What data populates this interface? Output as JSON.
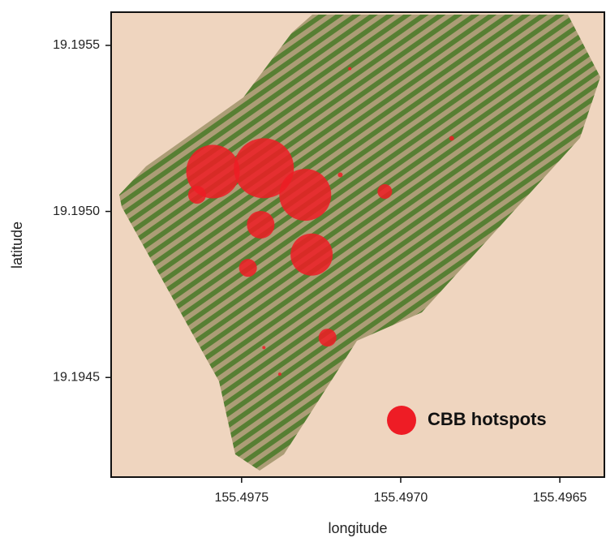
{
  "chart_data": {
    "type": "scatter",
    "x_label": "longitude",
    "y_label": "latitude",
    "xlim": [
      155.49791,
      155.49636
    ],
    "ylim": [
      19.1942,
      19.1956
    ],
    "xticks": [
      155.4975,
      {
        "value": 155.497,
        "label": "155.4970"
      },
      155.4965
    ],
    "yticks": [
      19.1955,
      {
        "value": 19.195,
        "label": "19.1950"
      },
      19.1945
    ],
    "legend": "lower right",
    "series": [
      {
        "name": "CBB hotspots",
        "color": "#ee1c25",
        "x": [
          155.49759,
          155.49743,
          155.4973,
          155.49764,
          155.49744,
          155.49728,
          155.49748,
          155.49705,
          155.49723,
          155.49719,
          155.49684,
          155.49716,
          155.49743,
          155.49738
        ],
        "values": [
          19.19512,
          19.19513,
          19.19505,
          19.19505,
          19.19496,
          19.19487,
          19.19483,
          19.19506,
          19.19462,
          19.19511,
          19.19522,
          19.19543,
          19.19459,
          19.19451
        ],
        "sizes": [
          33,
          37,
          32,
          11,
          17,
          26,
          11,
          9,
          11,
          3,
          3,
          2,
          2,
          2
        ]
      }
    ]
  }
}
